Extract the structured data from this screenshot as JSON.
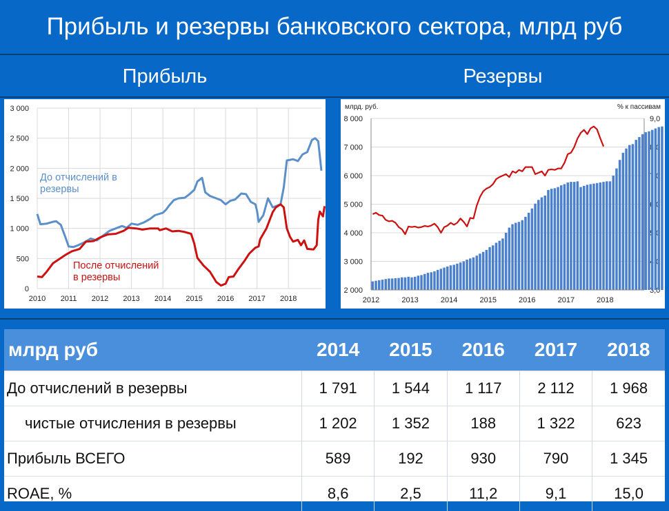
{
  "title": "Прибыль и резервы банковского сектора, млрд руб",
  "left_heading": "Прибыль",
  "right_heading": "Резервы",
  "chart_data": [
    {
      "type": "line",
      "x_ticks": [
        "2010",
        "2011",
        "2012",
        "2013",
        "2014",
        "2015",
        "2016",
        "2017",
        "2018"
      ],
      "y_ticks": [
        "0",
        "500",
        "1 000",
        "1 500",
        "2 000",
        "2 500",
        "3 000"
      ],
      "ylim": [
        0,
        3000
      ],
      "xlim": [
        2010,
        2019.05
      ],
      "grid": true,
      "series": [
        {
          "name": "До отчислений в резервы",
          "color": "#5b8fca",
          "points": [
            [
              2010.0,
              1240
            ],
            [
              2010.1,
              1070
            ],
            [
              2010.3,
              1080
            ],
            [
              2010.5,
              1110
            ],
            [
              2010.6,
              1120
            ],
            [
              2010.75,
              1060
            ],
            [
              2010.9,
              850
            ],
            [
              2011.0,
              700
            ],
            [
              2011.15,
              690
            ],
            [
              2011.3,
              720
            ],
            [
              2011.5,
              770
            ],
            [
              2011.7,
              830
            ],
            [
              2011.9,
              800
            ],
            [
              2012.1,
              880
            ],
            [
              2012.3,
              960
            ],
            [
              2012.5,
              1000
            ],
            [
              2012.7,
              1040
            ],
            [
              2012.85,
              1010
            ],
            [
              2013.0,
              1080
            ],
            [
              2013.2,
              1060
            ],
            [
              2013.4,
              1100
            ],
            [
              2013.6,
              1160
            ],
            [
              2013.75,
              1220
            ],
            [
              2014.0,
              1260
            ],
            [
              2014.1,
              1310
            ],
            [
              2014.2,
              1380
            ],
            [
              2014.35,
              1470
            ],
            [
              2014.5,
              1500
            ],
            [
              2014.7,
              1510
            ],
            [
              2014.85,
              1570
            ],
            [
              2015.0,
              1640
            ],
            [
              2015.1,
              1780
            ],
            [
              2015.25,
              1840
            ],
            [
              2015.35,
              1600
            ],
            [
              2015.5,
              1540
            ],
            [
              2015.7,
              1500
            ],
            [
              2015.85,
              1470
            ],
            [
              2016.0,
              1400
            ],
            [
              2016.15,
              1460
            ],
            [
              2016.3,
              1480
            ],
            [
              2016.5,
              1580
            ],
            [
              2016.65,
              1570
            ],
            [
              2016.8,
              1440
            ],
            [
              2016.95,
              1400
            ],
            [
              2017.0,
              1290
            ],
            [
              2017.05,
              1110
            ],
            [
              2017.2,
              1220
            ],
            [
              2017.35,
              1500
            ],
            [
              2017.5,
              1350
            ],
            [
              2017.65,
              1380
            ],
            [
              2017.75,
              1400
            ],
            [
              2017.85,
              1680
            ],
            [
              2017.95,
              2130
            ],
            [
              2018.15,
              2150
            ],
            [
              2018.3,
              2120
            ],
            [
              2018.45,
              2230
            ],
            [
              2018.6,
              2270
            ],
            [
              2018.75,
              2470
            ],
            [
              2018.85,
              2500
            ],
            [
              2018.95,
              2450
            ],
            [
              2019.05,
              1960
            ]
          ]
        },
        {
          "name": "После отчислений в резервы",
          "color": "#cc1111",
          "points": [
            [
              2010.0,
              200
            ],
            [
              2010.15,
              190
            ],
            [
              2010.3,
              280
            ],
            [
              2010.5,
              420
            ],
            [
              2010.7,
              490
            ],
            [
              2010.9,
              560
            ],
            [
              2011.1,
              620
            ],
            [
              2011.35,
              660
            ],
            [
              2011.55,
              780
            ],
            [
              2011.8,
              790
            ],
            [
              2012.0,
              850
            ],
            [
              2012.25,
              900
            ],
            [
              2012.5,
              910
            ],
            [
              2012.75,
              960
            ],
            [
              2012.9,
              1010
            ],
            [
              2013.15,
              1000
            ],
            [
              2013.35,
              980
            ],
            [
              2013.6,
              1000
            ],
            [
              2013.85,
              1000
            ],
            [
              2013.9,
              970
            ],
            [
              2014.1,
              1000
            ],
            [
              2014.3,
              950
            ],
            [
              2014.5,
              960
            ],
            [
              2014.7,
              940
            ],
            [
              2014.9,
              910
            ],
            [
              2015.0,
              750
            ],
            [
              2015.1,
              510
            ],
            [
              2015.3,
              380
            ],
            [
              2015.5,
              280
            ],
            [
              2015.7,
              110
            ],
            [
              2015.85,
              50
            ],
            [
              2016.0,
              80
            ],
            [
              2016.1,
              190
            ],
            [
              2016.25,
              200
            ],
            [
              2016.4,
              320
            ],
            [
              2016.6,
              460
            ],
            [
              2016.75,
              580
            ],
            [
              2016.95,
              680
            ],
            [
              2017.05,
              700
            ],
            [
              2017.1,
              820
            ],
            [
              2017.3,
              1000
            ],
            [
              2017.5,
              1270
            ],
            [
              2017.6,
              1350
            ],
            [
              2017.75,
              1400
            ],
            [
              2017.85,
              1350
            ],
            [
              2017.95,
              1000
            ],
            [
              2018.05,
              860
            ],
            [
              2018.15,
              780
            ],
            [
              2018.3,
              810
            ],
            [
              2018.4,
              720
            ],
            [
              2018.5,
              800
            ],
            [
              2018.6,
              660
            ],
            [
              2018.8,
              650
            ],
            [
              2018.9,
              720
            ],
            [
              2018.95,
              1140
            ],
            [
              2019.0,
              1280
            ],
            [
              2019.1,
              1200
            ],
            [
              2019.15,
              1370
            ]
          ]
        }
      ],
      "annotations": [
        {
          "text_lines": [
            "До отчислений в",
            "резервы"
          ],
          "color": "#5b8fca"
        },
        {
          "text_lines": [
            "После отчислений",
            "в резервы"
          ],
          "color": "#cc1111"
        }
      ]
    },
    {
      "type": "bar+line",
      "left_unit_label": "млрд. руб.",
      "right_unit_label": "% к пассивам",
      "x_ticks": [
        "2012",
        "2013",
        "2014",
        "2015",
        "2016",
        "2017",
        "2018"
      ],
      "y_left_ticks": [
        "2 000",
        "3 000",
        "4 000",
        "5 000",
        "6 000",
        "7 000",
        "8 000"
      ],
      "y_right_ticks": [
        "3,0",
        "4,0",
        "5,0",
        "6,0",
        "7,0",
        "8,0",
        "9,0"
      ],
      "ylim_left": [
        2000,
        8000
      ],
      "ylim_right": [
        3.0,
        9.0
      ],
      "xlim": [
        2012,
        2019
      ],
      "bar_color": "#4a80cc",
      "line_color": "#cc1111",
      "bars_monthly_from": "2012-01",
      "bars": [
        2300,
        2320,
        2340,
        2360,
        2380,
        2400,
        2400,
        2410,
        2420,
        2440,
        2440,
        2460,
        2440,
        2460,
        2500,
        2520,
        2560,
        2600,
        2620,
        2650,
        2700,
        2740,
        2780,
        2820,
        2860,
        2880,
        2920,
        2960,
        3000,
        3060,
        3100,
        3140,
        3200,
        3270,
        3330,
        3400,
        3500,
        3560,
        3650,
        3720,
        3800,
        4000,
        4180,
        4300,
        4350,
        4380,
        4440,
        4560,
        4700,
        4850,
        5020,
        5150,
        5240,
        5300,
        5500,
        5540,
        5560,
        5600,
        5660,
        5700,
        5760,
        5780,
        5780,
        5800,
        5600,
        5640,
        5680,
        5700,
        5720,
        5740,
        5760,
        5780,
        5800,
        5800,
        6000,
        6250,
        6550,
        6800,
        6950,
        7070,
        7100,
        7250,
        7350,
        7450,
        7520,
        7550,
        7600,
        7650,
        7700,
        7720
      ],
      "line": [
        5.65,
        5.7,
        5.62,
        5.6,
        5.45,
        5.4,
        5.42,
        5.35,
        5.2,
        5.12,
        4.95,
        5.22,
        5.2,
        5.22,
        5.18,
        5.2,
        5.24,
        5.22,
        5.25,
        5.32,
        5.2,
        5.0,
        5.2,
        5.25,
        5.35,
        5.28,
        5.35,
        5.5,
        5.38,
        5.22,
        5.52,
        5.5,
        5.95,
        6.25,
        6.45,
        6.55,
        6.6,
        6.7,
        6.88,
        6.95,
        7.0,
        7.05,
        6.95,
        7.15,
        7.1,
        7.2,
        7.15,
        7.3,
        7.3,
        7.3,
        7.05,
        7.1,
        7.15,
        7.0,
        7.2,
        7.22,
        7.2,
        7.25,
        7.25,
        7.45,
        7.75,
        7.8,
        8.0,
        8.3,
        8.5,
        8.6,
        8.45,
        8.65,
        8.72,
        8.62,
        8.3,
        8.02
      ]
    }
  ],
  "table": {
    "header": [
      "млрд руб",
      "2014",
      "2015",
      "2016",
      "2017",
      "2018"
    ],
    "rows": [
      {
        "label": "До отчислений в резервы",
        "indent": false,
        "values": [
          "1 791",
          "1 544",
          "1 117",
          "2 112",
          "1 968"
        ]
      },
      {
        "label": "чистые отчисления в резервы",
        "indent": true,
        "values": [
          "1 202",
          "1 352",
          "188",
          "1 322",
          "623"
        ]
      },
      {
        "label": "Прибыль ВСЕГО",
        "indent": false,
        "values": [
          "589",
          "192",
          "930",
          "790",
          "1 345"
        ]
      },
      {
        "label": "ROAE, %",
        "indent": false,
        "values": [
          "8,6",
          "2,5",
          "11,2",
          "9,1",
          "15,0"
        ]
      }
    ]
  }
}
